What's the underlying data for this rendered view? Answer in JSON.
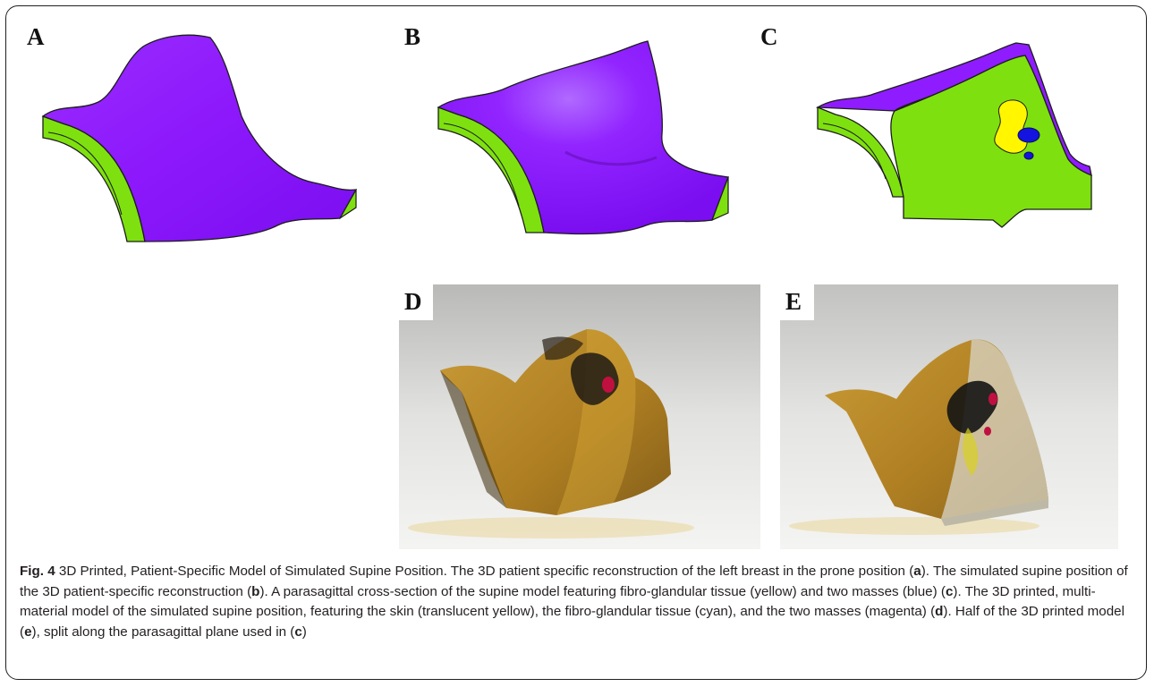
{
  "panels": [
    {
      "letter": "A",
      "view": "prone-reconstruction"
    },
    {
      "letter": "B",
      "view": "simulated-supine-reconstruction"
    },
    {
      "letter": "C",
      "view": "parasagittal-cross-section"
    },
    {
      "letter": "D",
      "view": "3d-printed-model-photo"
    },
    {
      "letter": "E",
      "view": "3d-printed-half-model-photo"
    }
  ],
  "colors": {
    "skin": "#8f1cff",
    "tissue": "#7ee10f",
    "glandular": "#fff600",
    "mass": "#1414e0",
    "print_resin": "#b07d12"
  },
  "caption": {
    "label": "Fig. 4",
    "title": " 3D Printed, Patient-Specific Model of Simulated Supine Position.",
    "segments": [
      {
        "text": " The 3D patient specific reconstruction of the left breast in the prone position ("
      },
      {
        "text": "a",
        "bold": true
      },
      {
        "text": "). The simulated supine position of the 3D patient-specific reconstruction ("
      },
      {
        "text": "b",
        "bold": true
      },
      {
        "text": "). A parasagittal cross-section of the supine model featuring fibro-glandular tissue (yellow) and two masses (blue) ("
      },
      {
        "text": "c",
        "bold": true
      },
      {
        "text": "). The 3D printed, multi-material model of the simulated supine position, featuring the skin (translucent yellow), the fibro-glandular tissue (cyan), and the two masses (magenta) ("
      },
      {
        "text": "d",
        "bold": true
      },
      {
        "text": "). Half of the 3D printed model ("
      },
      {
        "text": "e",
        "bold": true
      },
      {
        "text": "), split along the parasagittal plane used in ("
      },
      {
        "text": "c",
        "bold": true
      },
      {
        "text": ")"
      }
    ]
  }
}
